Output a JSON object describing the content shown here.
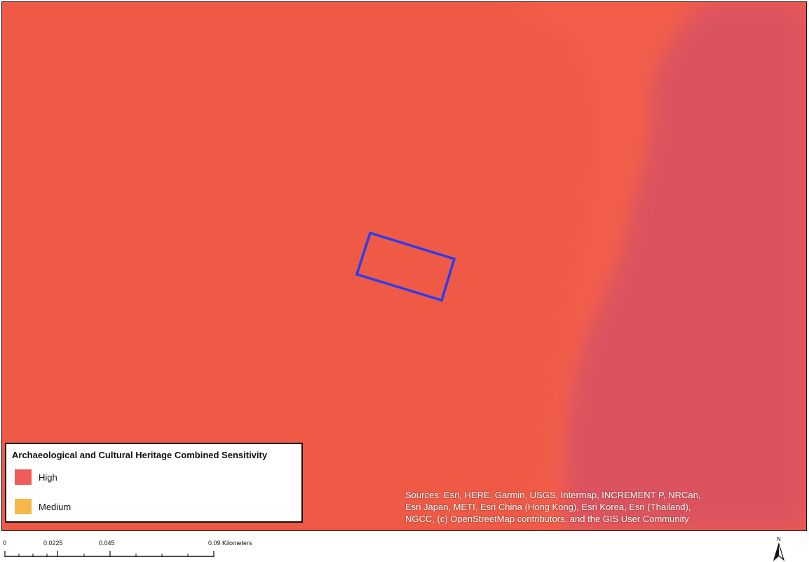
{
  "map": {
    "colors": {
      "high_base": "#ee5a46",
      "transition": "#f25c4a",
      "east_zone": "#dc5260",
      "site_outline": "#2a3cf0"
    },
    "site_boundary_label": "",
    "attribution_lines": [
      "Sources: Esri, HERE, Garmin, USGS, Intermap, INCREMENT P, NRCan,",
      "Esri Japan, METI, Esri China (Hong Kong), Esri Korea, Esri (Thailand),",
      "NGCC, (c) OpenStreetMap contributors, and the GIS User Community"
    ]
  },
  "legend": {
    "title": "Archaeological and Cultural Heritage Combined Sensitivity",
    "items": [
      {
        "label": "High",
        "color": "#ef5b5b"
      },
      {
        "label": "Medium",
        "color": "#f7b84a"
      }
    ]
  },
  "scalebar": {
    "ticks": [
      "0",
      "0.0225",
      "0.045",
      "0.09 Kilometers"
    ]
  },
  "north_arrow": {
    "letter": "N",
    "icon": "north-arrow-icon"
  }
}
